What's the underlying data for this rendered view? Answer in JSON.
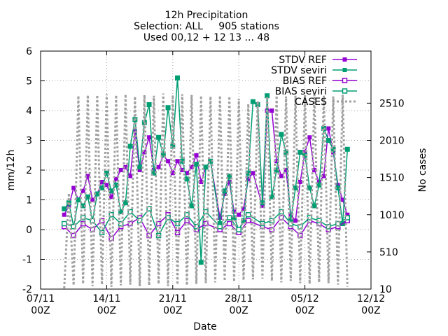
{
  "chart_data": {
    "type": "line",
    "title_lines": [
      "12h Precipitation",
      "Selection: ALL     905 stations",
      "Used 00,12 + 12 13 ... 48"
    ],
    "xlabel": "Date",
    "ylabel": "mm/12h",
    "y2label": "No cases",
    "x_ticks": [
      {
        "t": 0,
        "label": [
          "07/11",
          "00Z"
        ]
      },
      {
        "t": 7,
        "label": [
          "14/11",
          "00Z"
        ]
      },
      {
        "t": 14,
        "label": [
          "21/11",
          "00Z"
        ]
      },
      {
        "t": 21,
        "label": [
          "28/11",
          "00Z"
        ]
      },
      {
        "t": 28,
        "label": [
          "05/12",
          "00Z"
        ]
      },
      {
        "t": 35,
        "label": [
          "12/12",
          "00Z"
        ]
      }
    ],
    "xlim": [
      0,
      35
    ],
    "ylim": [
      -2,
      6
    ],
    "y_ticks": [
      -2,
      -1,
      0,
      1,
      2,
      3,
      4,
      5,
      6
    ],
    "y2lim": [
      10,
      3210
    ],
    "y2_ticks": [
      10,
      510,
      1010,
      1510,
      2010,
      2510
    ],
    "grid": true,
    "legend_position": "top-right",
    "colors": {
      "ref": "#9400d3",
      "seviri": "#009e73",
      "cases": "#a0a0a0",
      "grid": "#a0a0a0"
    },
    "series": [
      {
        "name": "STDV REF",
        "key": "ref",
        "marker": "square-filled",
        "x": [
          2.5,
          3,
          3.5,
          4,
          4.5,
          5,
          5.5,
          6,
          6.5,
          7,
          7.5,
          8,
          8.5,
          9,
          9.5,
          10,
          10.5,
          11,
          11.5,
          12,
          12.5,
          13,
          13.5,
          14,
          14.5,
          15,
          15.5,
          16,
          16.5,
          17,
          17.5,
          18,
          19,
          19.5,
          20,
          20.5,
          21,
          21.5,
          22,
          22.5,
          23.5,
          24,
          24.5,
          25,
          25.5,
          26,
          26.5,
          27,
          27.5,
          28,
          28.5,
          29,
          29.5,
          30,
          30.5,
          31,
          31.5,
          32,
          32.5
        ],
        "y": [
          0.5,
          0.8,
          1.4,
          1.0,
          1.3,
          1.8,
          1.0,
          1.2,
          1.6,
          1.5,
          1.1,
          1.7,
          2.0,
          2.1,
          1.8,
          3.3,
          2.0,
          2.6,
          3.1,
          2.0,
          2.1,
          2.5,
          2.3,
          1.9,
          2.3,
          2.0,
          1.9,
          2.1,
          2.5,
          1.6,
          2.1,
          2.3,
          0.4,
          1.2,
          1.6,
          0.6,
          0.5,
          0.7,
          1.7,
          1.9,
          0.8,
          4.0,
          4.0,
          2.3,
          1.8,
          2.0,
          0.5,
          0.3,
          1.6,
          2.6,
          3.1,
          2.0,
          1.6,
          1.8,
          3.4,
          2.6,
          1.5,
          1.0,
          0.5
        ]
      },
      {
        "name": "STDV seviri",
        "key": "seviri",
        "marker": "cross-square",
        "x": [
          2.5,
          3,
          3.5,
          4,
          4.5,
          5,
          5.5,
          6,
          6.5,
          7,
          7.5,
          8,
          8.5,
          9,
          9.5,
          10,
          10.5,
          11,
          11.5,
          12,
          12.5,
          13,
          13.5,
          14,
          14.5,
          15,
          15.5,
          16,
          16.5,
          17,
          17.5,
          18,
          19,
          19.5,
          20,
          20.5,
          21,
          21.5,
          22,
          22.5,
          23,
          23.5,
          24,
          24.5,
          25,
          25.5,
          26,
          26.5,
          27,
          27.5,
          28,
          28.5,
          29,
          29.5,
          30,
          30.5,
          31,
          31.5,
          32,
          32.5
        ],
        "y": [
          0.7,
          0.9,
          0.1,
          1.0,
          0.8,
          1.1,
          0.3,
          1.2,
          1.4,
          1.9,
          1.3,
          1.5,
          0.6,
          0.9,
          2.8,
          3.7,
          2.1,
          3.6,
          4.2,
          1.9,
          3.1,
          2.5,
          4.1,
          2.8,
          5.1,
          2.3,
          1.7,
          0.8,
          2.2,
          -1.1,
          2.1,
          2.3,
          0.2,
          1.3,
          1.8,
          0.4,
          0.0,
          0.3,
          1.9,
          4.3,
          4.2,
          0.9,
          4.5,
          1.1,
          2.0,
          3.2,
          2.6,
          0.3,
          1.4,
          2.6,
          2.5,
          1.4,
          0.8,
          1.5,
          3.4,
          3.0,
          2.7,
          1.4,
          0.2,
          2.7
        ]
      },
      {
        "name": "BIAS REF",
        "key": "ref",
        "marker": "square-open",
        "x": [
          2.5,
          3.5,
          4.5,
          5.5,
          6.5,
          7.5,
          8.5,
          9.5,
          10.5,
          11.5,
          12.5,
          13.5,
          14.5,
          15.5,
          16.5,
          17.5,
          19,
          20,
          21,
          22,
          23.5,
          24.5,
          25.5,
          26.5,
          27.5,
          28.5,
          29.5,
          30.5,
          31.5,
          32.5
        ],
        "y": [
          0.1,
          -0.2,
          0.2,
          0.0,
          0.3,
          -0.3,
          0.1,
          0.2,
          0.4,
          -0.2,
          0.2,
          0.5,
          -0.1,
          0.3,
          0.0,
          0.2,
          0.0,
          0.2,
          -0.1,
          0.3,
          0.1,
          0.0,
          0.4,
          0.1,
          -0.2,
          0.3,
          0.2,
          0.0,
          0.1,
          0.3
        ]
      },
      {
        "name": "BIAS seviri",
        "key": "seviri",
        "marker": "square-open",
        "x": [
          2.5,
          3.5,
          4.5,
          5.5,
          6.5,
          7.5,
          8.5,
          9.5,
          10.5,
          11.5,
          12.5,
          13.5,
          14.5,
          15.5,
          16.5,
          17.5,
          19,
          20,
          21,
          22,
          23.5,
          24.5,
          25.5,
          26.5,
          27.5,
          28.5,
          29.5,
          30.5,
          31.5,
          32.5
        ],
        "y": [
          0.2,
          0.1,
          0.4,
          0.3,
          -0.1,
          0.5,
          0.2,
          0.6,
          0.3,
          0.7,
          -0.2,
          0.4,
          0.2,
          0.5,
          0.1,
          0.6,
          0.1,
          0.4,
          0.0,
          0.5,
          0.2,
          0.3,
          0.6,
          0.2,
          0.1,
          0.4,
          0.3,
          0.1,
          0.2,
          0.4
        ]
      },
      {
        "name": "CASES",
        "key": "cases",
        "axis": "y2",
        "style": "dotted-thick",
        "x": [
          2.5,
          3,
          3.5,
          4,
          4.5,
          5,
          5.5,
          6,
          6.5,
          7,
          7.5,
          8,
          8.5,
          9,
          9.5,
          10,
          10.5,
          11,
          11.5,
          12,
          12.5,
          13,
          13.5,
          14,
          14.5,
          15,
          15.5,
          16,
          16.5,
          17,
          17.5,
          18,
          18.5,
          19,
          19.5,
          20,
          20.5,
          21,
          21.5,
          22,
          22.5,
          23,
          23.5,
          24,
          24.5,
          25,
          25.5,
          26,
          26.5,
          27,
          27.5,
          28,
          28.5,
          29,
          29.5,
          30,
          30.5,
          31,
          31.5,
          32,
          32.5
        ],
        "y": [
          20,
          1300,
          60,
          2610,
          80,
          2620,
          50,
          2620,
          70,
          2630,
          40,
          2620,
          60,
          2630,
          70,
          2600,
          50,
          2620,
          60,
          2610,
          80,
          2640,
          50,
          2620,
          70,
          2630,
          60,
          2620,
          80,
          2610,
          90,
          2600,
          100,
          2610,
          120,
          2600,
          110,
          2570,
          130,
          2500,
          140,
          2540,
          150,
          2600,
          120,
          2610,
          100,
          2600,
          120,
          2610,
          90,
          2620,
          80,
          2630,
          100,
          2610,
          90,
          2600,
          70,
          2620,
          40
        ]
      }
    ]
  }
}
